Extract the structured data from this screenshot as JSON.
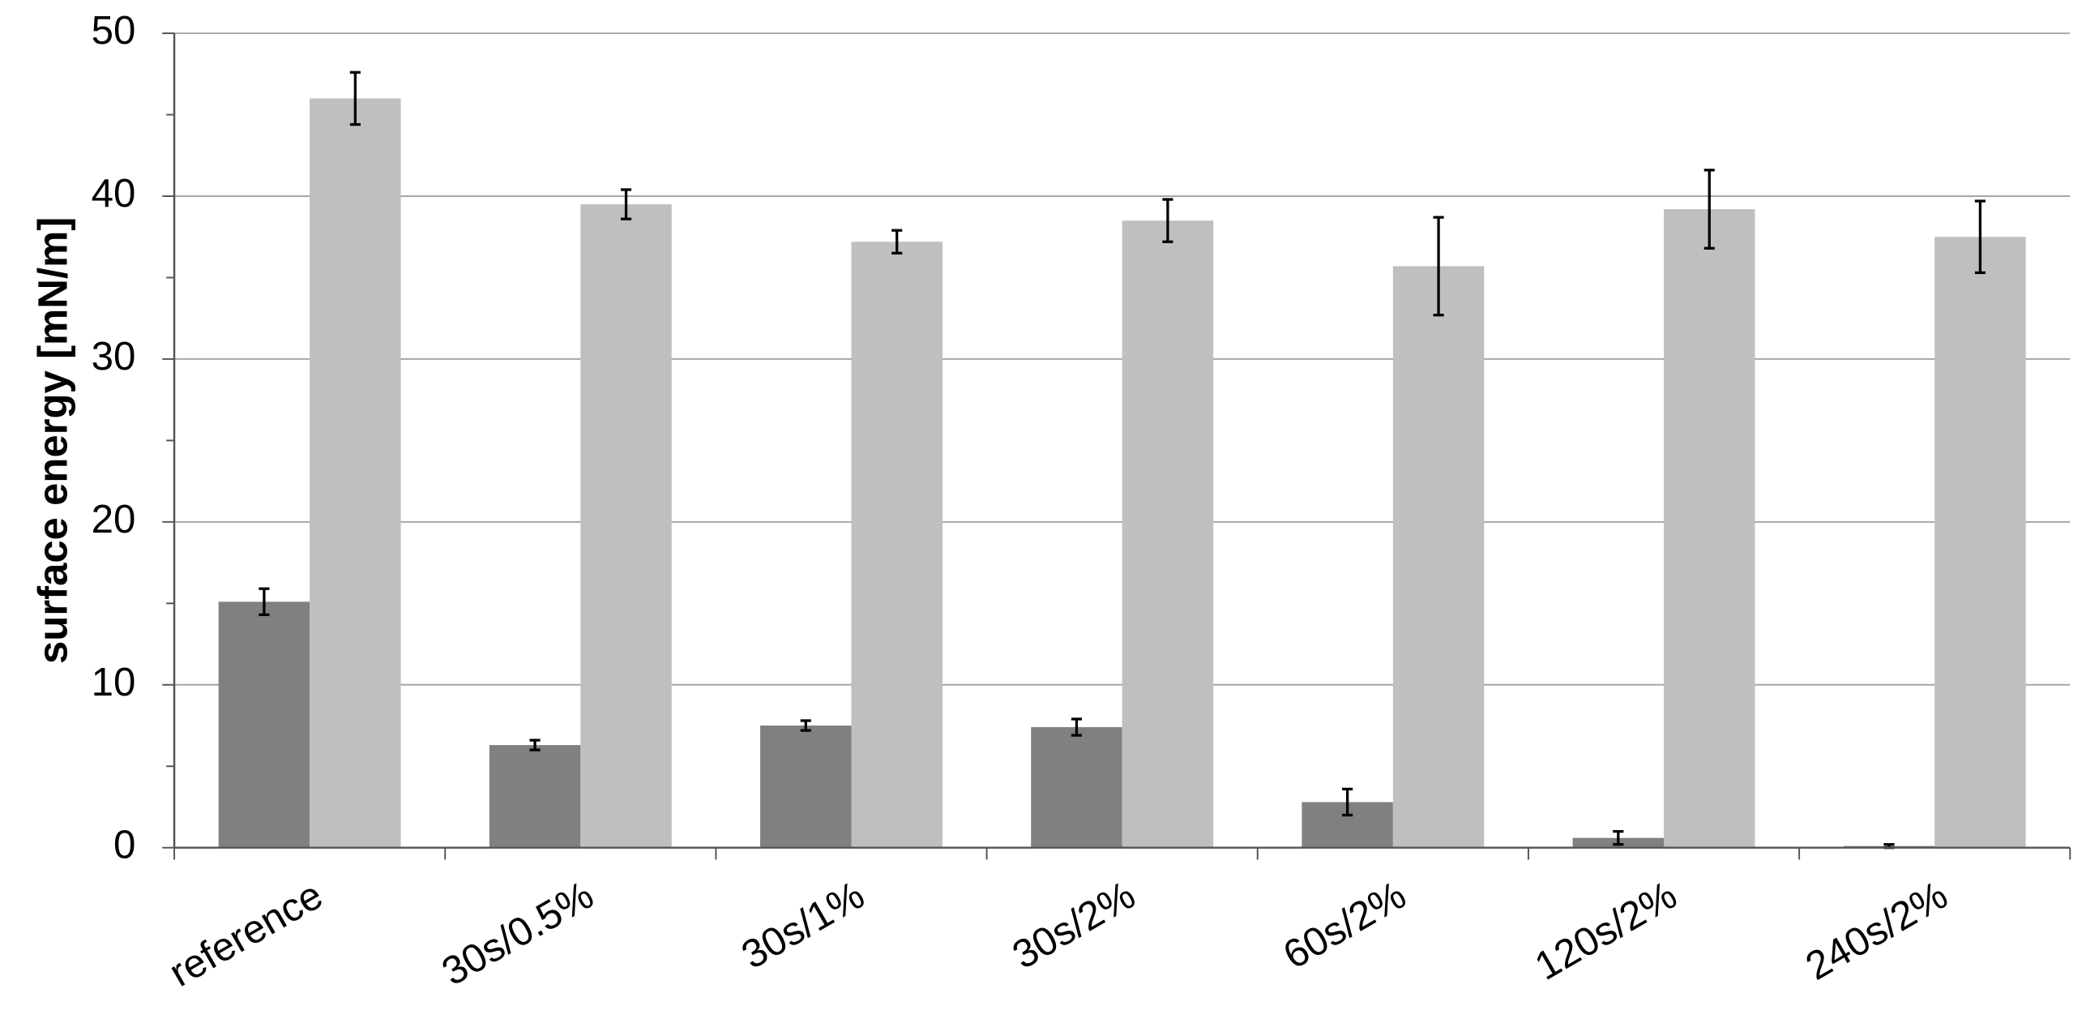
{
  "chart_data": {
    "type": "bar",
    "y_label": "surface energy [mN/m]",
    "categories": [
      "reference",
      "30s/0.5%",
      "30s/1%",
      "30s/2%",
      "60s/2%",
      "120s/2%",
      "240s/2%"
    ],
    "series": [
      {
        "color": "#808080",
        "values": [
          15.1,
          6.3,
          7.5,
          7.4,
          2.8,
          0.6,
          0.1
        ],
        "errors": [
          0.8,
          0.3,
          0.3,
          0.5,
          0.8,
          0.4,
          0.1
        ]
      },
      {
        "color": "#bfbfbf",
        "values": [
          46.0,
          39.5,
          37.2,
          38.5,
          35.7,
          39.2,
          37.5
        ],
        "errors": [
          1.6,
          0.9,
          0.7,
          1.3,
          3.0,
          2.4,
          2.2
        ]
      }
    ],
    "ylim": [
      0,
      50
    ],
    "yticks": [
      0,
      10,
      20,
      30,
      40,
      50
    ],
    "yminorticks": [
      5,
      15,
      25,
      35,
      45
    ],
    "grid": true
  }
}
